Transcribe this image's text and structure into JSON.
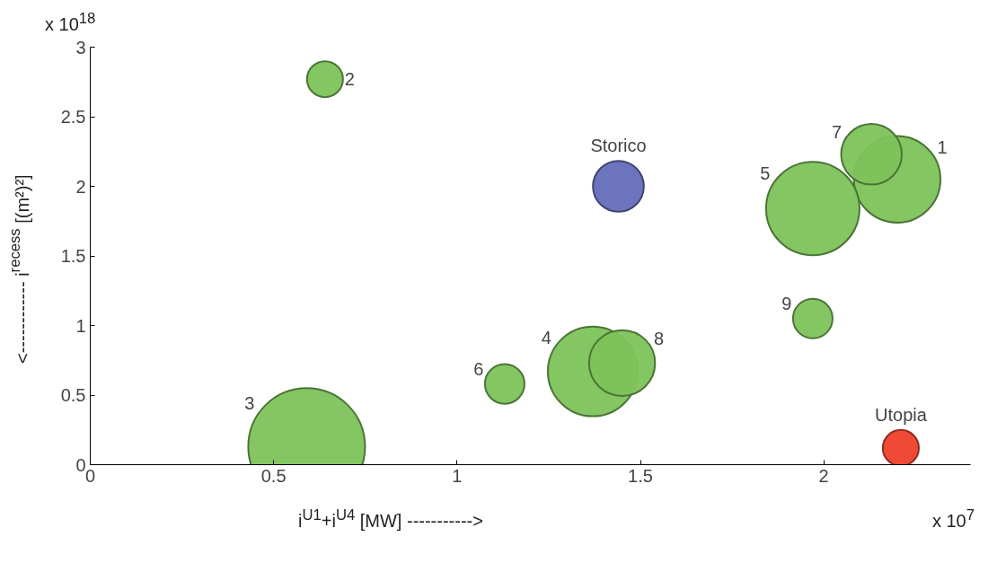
{
  "chart_data": {
    "type": "bubble",
    "xlabel": "i$^{U1}$+i$^{U4}$ [MW] ----------->",
    "ylabel": "<------------ i$^{recess}$ [(m²)²]",
    "xlim": [
      0,
      2.4
    ],
    "xticks": [
      0,
      0.5,
      1,
      1.5,
      2
    ],
    "ylim": [
      0,
      3
    ],
    "yticks": [
      0,
      0.5,
      1,
      1.5,
      2,
      2.5,
      3
    ],
    "grid": false,
    "legend": false,
    "annotations": [
      "x 10$^{18}$",
      "x 10$^{7}$"
    ],
    "series": [
      {
        "name": "1",
        "color": "#7dc35a",
        "x": [
          2.2
        ],
        "values": [
          2.05
        ],
        "sizes": [
          0.55
        ]
      },
      {
        "name": "2",
        "color": "#7dc35a",
        "x": [
          0.64
        ],
        "values": [
          2.77
        ],
        "sizes": [
          0.095
        ]
      },
      {
        "name": "3",
        "color": "#7dc35a",
        "x": [
          0.59
        ],
        "values": [
          0.13
        ],
        "sizes": [
          1
        ]
      },
      {
        "name": "4",
        "color": "#7dc35a",
        "x": [
          1.37
        ],
        "values": [
          0.67
        ],
        "sizes": [
          0.59
        ]
      },
      {
        "name": "5",
        "color": "#7dc35a",
        "x": [
          1.97
        ],
        "values": [
          1.84
        ],
        "sizes": [
          0.64
        ]
      },
      {
        "name": "6",
        "color": "#7dc35a",
        "x": [
          1.13
        ],
        "values": [
          0.58
        ],
        "sizes": [
          0.115
        ]
      },
      {
        "name": "7",
        "color": "#7dc35a",
        "x": [
          2.13
        ],
        "values": [
          2.23
        ],
        "sizes": [
          0.27
        ]
      },
      {
        "name": "8",
        "color": "#7dc35a",
        "x": [
          1.45
        ],
        "values": [
          0.73
        ],
        "sizes": [
          0.32
        ]
      },
      {
        "name": "9",
        "color": "#7dc35a",
        "x": [
          1.97
        ],
        "values": [
          1.05
        ],
        "sizes": [
          0.115
        ]
      },
      {
        "name": "Storico",
        "color": "#6b74bc",
        "x": [
          1.44
        ],
        "values": [
          2.0
        ],
        "sizes": [
          0.19
        ]
      },
      {
        "name": "Utopia",
        "color": "#f04a36",
        "x": [
          2.21
        ],
        "values": [
          0.12
        ],
        "sizes": [
          0.095
        ]
      }
    ]
  }
}
